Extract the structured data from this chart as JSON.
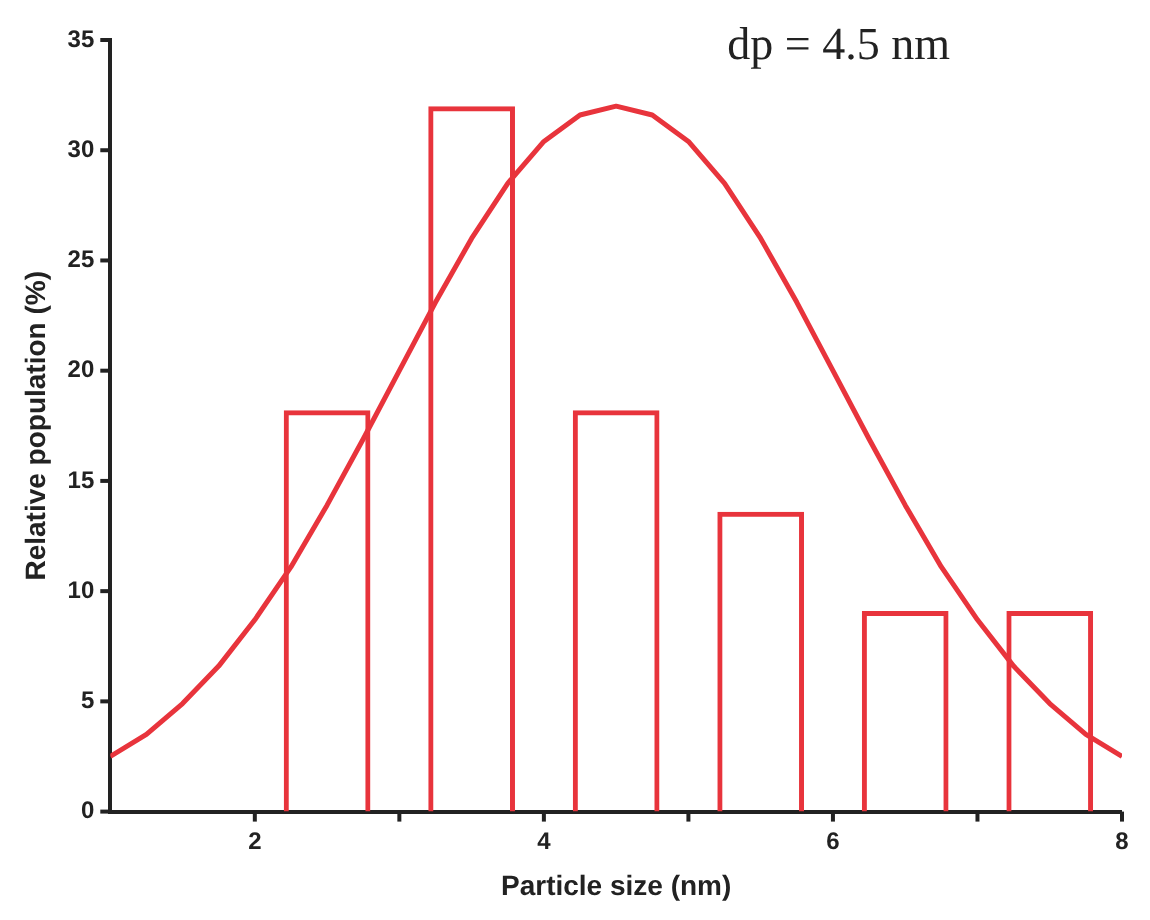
{
  "chart_data": {
    "type": "bar",
    "xlabel": "Particle size (nm)",
    "ylabel": "Relative population (%)",
    "annotations": [
      "dp = 4.5 nm"
    ],
    "x": [
      2.5,
      3.5,
      4.5,
      5.5,
      6.5,
      7.5
    ],
    "series": [
      {
        "color": "#e8343c",
        "values": [
          18.2,
          32,
          18.2,
          13.6,
          9.1,
          9.1
        ]
      },
      {
        "type": "line",
        "color": "#e8343c",
        "x": [
          1,
          1.25,
          1.5,
          1.75,
          2,
          2.25,
          2.5,
          2.75,
          3,
          3.25,
          3.5,
          3.75,
          4,
          4.25,
          4.5,
          4.75,
          5,
          5.25,
          5.5,
          5.75,
          6,
          6.25,
          6.5,
          6.75,
          7,
          7.25,
          7.5,
          7.75,
          8
        ],
        "values": [
          2.5,
          3.5,
          4.9,
          6.6,
          8.7,
          11.1,
          13.9,
          16.9,
          20.0,
          23.1,
          26.0,
          28.5,
          30.4,
          31.6,
          32,
          31.6,
          30.4,
          28.5,
          26.0,
          23.1,
          20.0,
          16.9,
          13.9,
          11.1,
          8.7,
          6.6,
          4.9,
          3.5,
          2.5
        ]
      }
    ],
    "xlim": [
      1,
      8
    ],
    "xticks": [
      2,
      {
        "value": 3,
        "label": null
      },
      4,
      {
        "value": 5,
        "label": null
      },
      6,
      {
        "value": 7,
        "label": null
      },
      8
    ],
    "ylim": [
      0,
      35
    ],
    "yticks": [
      0,
      5,
      10,
      15,
      20,
      25,
      30,
      35
    ],
    "legend": false,
    "marker": "none"
  }
}
